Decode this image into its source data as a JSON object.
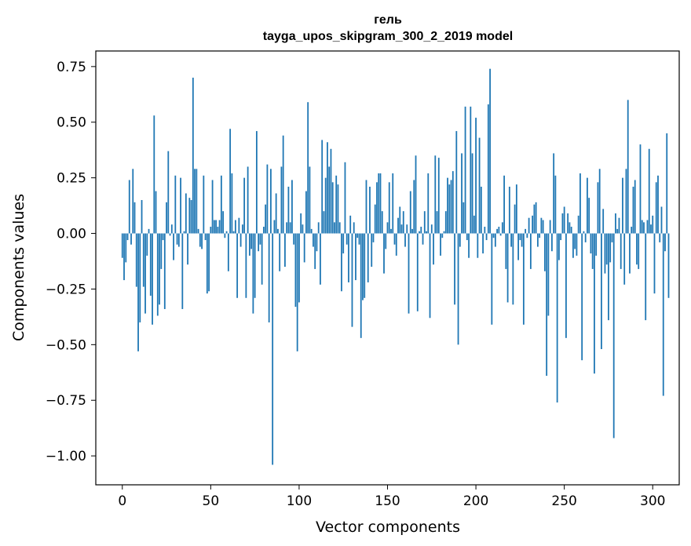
{
  "chart_data": {
    "type": "bar",
    "title": "гель",
    "subtitle": "tayga_upos_skipgram_300_2_2019 model",
    "xlabel": "Vector components",
    "ylabel": "Components values",
    "xlim": [
      -15,
      315
    ],
    "ylim": [
      -1.13,
      0.82
    ],
    "xticks": [
      0,
      50,
      100,
      150,
      200,
      250,
      300
    ],
    "yticks": [
      0.75,
      0.5,
      0.25,
      0.0,
      -0.25,
      -0.5,
      -0.75,
      -1.0
    ],
    "ytick_labels": [
      "0.75",
      "0.50",
      "0.25",
      "0.00",
      "−0.25",
      "−0.50",
      "−0.75",
      "−1.00"
    ],
    "bar_color": "#1f77b4",
    "values": [
      -0.11,
      -0.21,
      -0.13,
      -0.03,
      0.24,
      -0.05,
      0.29,
      0.14,
      -0.24,
      -0.53,
      -0.4,
      0.15,
      -0.24,
      -0.36,
      -0.1,
      0.02,
      -0.28,
      -0.41,
      0.53,
      0.19,
      -0.37,
      -0.32,
      -0.16,
      -0.03,
      -0.34,
      0.14,
      0.37,
      -0.01,
      0.04,
      -0.12,
      0.26,
      -0.05,
      -0.06,
      0.25,
      -0.34,
      0.01,
      0.18,
      -0.14,
      0.16,
      0.15,
      0.7,
      0.29,
      0.29,
      0.02,
      -0.06,
      -0.07,
      0.26,
      -0.03,
      -0.27,
      -0.26,
      0.03,
      0.24,
      0.06,
      0.06,
      0.03,
      0.06,
      0.26,
      0.1,
      -0.02,
      0.01,
      -0.17,
      0.47,
      0.27,
      0.01,
      0.06,
      -0.29,
      0.07,
      -0.06,
      0.04,
      0.25,
      -0.29,
      0.3,
      -0.1,
      -0.07,
      -0.36,
      -0.29,
      0.46,
      -0.08,
      -0.05,
      -0.23,
      0.03,
      0.13,
      0.31,
      -0.4,
      0.29,
      -1.04,
      0.06,
      0.18,
      0.02,
      -0.17,
      0.3,
      0.44,
      -0.15,
      0.05,
      0.21,
      0.05,
      0.24,
      -0.05,
      -0.33,
      -0.53,
      -0.31,
      0.09,
      0.04,
      -0.13,
      0.19,
      0.59,
      0.3,
      0.02,
      -0.06,
      -0.16,
      -0.08,
      0.05,
      -0.23,
      0.42,
      0.1,
      0.25,
      0.41,
      0.3,
      0.38,
      0.23,
      0.05,
      0.26,
      0.22,
      0.05,
      -0.26,
      -0.09,
      0.32,
      -0.05,
      -0.22,
      0.08,
      -0.42,
      0.05,
      -0.21,
      -0.02,
      -0.05,
      -0.47,
      -0.3,
      -0.29,
      0.24,
      -0.22,
      0.21,
      -0.15,
      -0.04,
      0.13,
      0.23,
      0.27,
      0.27,
      0.1,
      -0.18,
      -0.07,
      0.05,
      0.23,
      0.02,
      0.27,
      -0.05,
      -0.1,
      0.07,
      0.12,
      0.04,
      0.1,
      -0.06,
      0.04,
      -0.36,
      0.19,
      0.02,
      0.24,
      0.35,
      -0.35,
      0.01,
      0.03,
      -0.05,
      0.1,
      0.01,
      0.27,
      -0.38,
      0.04,
      -0.14,
      0.35,
      0.1,
      0.34,
      -0.1,
      -0.02,
      0.01,
      0.1,
      0.25,
      0.22,
      0.24,
      0.28,
      -0.32,
      0.46,
      -0.5,
      -0.06,
      0.36,
      0.14,
      0.57,
      -0.03,
      -0.11,
      0.57,
      0.36,
      0.08,
      0.52,
      -0.11,
      0.43,
      0.21,
      -0.09,
      0.03,
      -0.03,
      0.58,
      0.74,
      -0.41,
      -0.02,
      -0.06,
      0.02,
      0.03,
      -0.01,
      0.05,
      0.26,
      -0.16,
      -0.31,
      0.21,
      -0.06,
      -0.32,
      0.13,
      0.22,
      -0.12,
      -0.03,
      -0.06,
      -0.41,
      0.02,
      -0.02,
      0.07,
      -0.16,
      0.08,
      0.13,
      0.14,
      -0.06,
      -0.02,
      0.07,
      0.06,
      -0.17,
      -0.64,
      -0.37,
      0.06,
      -0.08,
      0.36,
      0.26,
      -0.76,
      -0.12,
      -0.03,
      0.09,
      0.12,
      -0.47,
      0.09,
      0.05,
      0.03,
      -0.11,
      -0.07,
      -0.1,
      0.08,
      0.27,
      -0.57,
      0.01,
      -0.04,
      0.25,
      0.16,
      -0.09,
      -0.16,
      -0.63,
      -0.1,
      0.23,
      0.29,
      -0.52,
      0.11,
      -0.18,
      -0.14,
      -0.39,
      -0.13,
      -0.04,
      -0.92,
      0.09,
      0.02,
      0.07,
      -0.16,
      0.25,
      -0.23,
      0.29,
      0.6,
      -0.18,
      0.03,
      0.21,
      0.24,
      -0.14,
      -0.16,
      0.4,
      0.06,
      0.05,
      -0.39,
      0.06,
      0.38,
      0.04,
      0.08,
      -0.27,
      0.23,
      0.26,
      -0.04,
      0.12,
      -0.73,
      -0.08,
      0.45,
      -0.29
    ]
  }
}
